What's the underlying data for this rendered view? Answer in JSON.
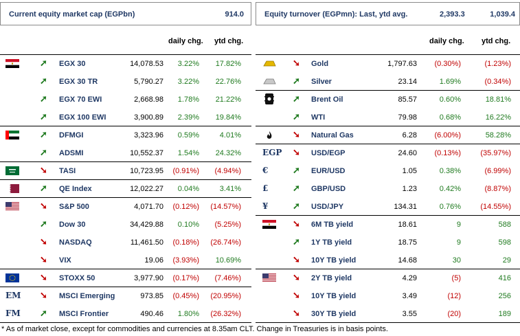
{
  "left_header": {
    "title": "Current equity market cap (EGPbn)",
    "value": "914.0"
  },
  "right_header": {
    "title": "Equity turnover (EGPmn): Last, ytd avg.",
    "last": "2,393.3",
    "ytd": "1,039.4"
  },
  "columns": {
    "daily": "daily chg.",
    "ytd": "ytd chg."
  },
  "left_rows": [
    {
      "icon": "egypt-flag-icon",
      "dir": "up",
      "name": "EGX 30",
      "value": "14,078.53",
      "daily": "3.22%",
      "ytd": "17.82%",
      "d_neg": false,
      "y_neg": false
    },
    {
      "icon": "",
      "dir": "up",
      "name": "EGX 30 TR",
      "value": "5,790.27",
      "daily": "3.22%",
      "ytd": "22.76%",
      "d_neg": false,
      "y_neg": false
    },
    {
      "icon": "",
      "dir": "up",
      "name": "EGX 70 EWI",
      "value": "2,668.98",
      "daily": "1.78%",
      "ytd": "21.22%",
      "d_neg": false,
      "y_neg": false
    },
    {
      "icon": "",
      "dir": "up",
      "name": "EGX 100 EWI",
      "value": "3,900.89",
      "daily": "2.39%",
      "ytd": "19.84%",
      "d_neg": false,
      "y_neg": false
    },
    {
      "icon": "uae-flag-icon",
      "dir": "up",
      "name": "DFMGI",
      "value": "3,323.96",
      "daily": "0.59%",
      "ytd": "4.01%",
      "d_neg": false,
      "y_neg": false
    },
    {
      "icon": "",
      "dir": "up",
      "name": "ADSMI",
      "value": "10,552.37",
      "daily": "1.54%",
      "ytd": "24.32%",
      "d_neg": false,
      "y_neg": false
    },
    {
      "icon": "saudi-flag-icon",
      "dir": "down",
      "name": "TASI",
      "value": "10,723.95",
      "daily": "(0.91%)",
      "ytd": "(4.94%)",
      "d_neg": true,
      "y_neg": true
    },
    {
      "icon": "qatar-flag-icon",
      "dir": "up",
      "name": "QE Index",
      "value": "12,022.27",
      "daily": "0.04%",
      "ytd": "3.41%",
      "d_neg": false,
      "y_neg": false
    },
    {
      "icon": "us-flag-icon",
      "dir": "down",
      "name": "S&P 500",
      "value": "4,071.70",
      "daily": "(0.12%)",
      "ytd": "(14.57%)",
      "d_neg": true,
      "y_neg": true
    },
    {
      "icon": "",
      "dir": "up",
      "name": "Dow 30",
      "value": "34,429.88",
      "daily": "0.10%",
      "ytd": "(5.25%)",
      "d_neg": false,
      "y_neg": true
    },
    {
      "icon": "",
      "dir": "down",
      "name": "NASDAQ",
      "value": "11,461.50",
      "daily": "(0.18%)",
      "ytd": "(26.74%)",
      "d_neg": true,
      "y_neg": true
    },
    {
      "icon": "",
      "dir": "down",
      "name": "VIX",
      "value": "19.06",
      "daily": "(3.93%)",
      "ytd": "10.69%",
      "d_neg": true,
      "y_neg": false
    },
    {
      "icon": "eu-flag-icon",
      "dir": "down",
      "name": "STOXX 50",
      "value": "3,977.90",
      "daily": "(0.17%)",
      "ytd": "(7.46%)",
      "d_neg": true,
      "y_neg": true
    },
    {
      "icon": "em-text-icon",
      "icon_text": "EM",
      "dir": "down",
      "name": "MSCI Emerging",
      "value": "973.85",
      "daily": "(0.45%)",
      "ytd": "(20.95%)",
      "d_neg": true,
      "y_neg": true
    },
    {
      "icon": "fm-text-icon",
      "icon_text": "FM",
      "dir": "up",
      "name": "MSCI Frontier",
      "value": "490.46",
      "daily": "1.80%",
      "ytd": "(26.32%)",
      "d_neg": false,
      "y_neg": true
    }
  ],
  "right_rows": [
    {
      "icon": "gold-bar-icon",
      "dir": "down",
      "name": "Gold",
      "value": "1,797.63",
      "daily": "(0.30%)",
      "ytd": "(1.23%)",
      "d_neg": true,
      "y_neg": true
    },
    {
      "icon": "silver-bar-icon",
      "dir": "up",
      "name": "Silver",
      "value": "23.14",
      "daily": "1.69%",
      "ytd": "(0.34%)",
      "d_neg": false,
      "y_neg": true
    },
    {
      "icon": "oil-barrel-icon",
      "dir": "up",
      "name": "Brent Oil",
      "value": "85.57",
      "daily": "0.60%",
      "ytd": "18.81%",
      "d_neg": false,
      "y_neg": false
    },
    {
      "icon": "",
      "dir": "up",
      "name": "WTI",
      "value": "79.98",
      "daily": "0.68%",
      "ytd": "16.22%",
      "d_neg": false,
      "y_neg": false
    },
    {
      "icon": "flame-icon",
      "dir": "down",
      "name": "Natural Gas",
      "value": "6.28",
      "daily": "(6.00%)",
      "ytd": "58.28%",
      "d_neg": true,
      "y_neg": false
    },
    {
      "icon": "egp-text-icon",
      "icon_text": "EGP",
      "dir": "down",
      "name": "USD/EGP",
      "value": "24.60",
      "daily": "(0.13%)",
      "ytd": "(35.97%)",
      "d_neg": true,
      "y_neg": true
    },
    {
      "icon": "euro-icon",
      "icon_text": "€",
      "dir": "up",
      "name": "EUR/USD",
      "value": "1.05",
      "daily": "0.38%",
      "ytd": "(6.99%)",
      "d_neg": false,
      "y_neg": true
    },
    {
      "icon": "pound-icon",
      "icon_text": "£",
      "dir": "up",
      "name": "GBP/USD",
      "value": "1.23",
      "daily": "0.42%",
      "ytd": "(8.87%)",
      "d_neg": false,
      "y_neg": true
    },
    {
      "icon": "yen-icon",
      "icon_text": "¥",
      "dir": "up",
      "name": "USD/JPY",
      "value": "134.31",
      "daily": "0.76%",
      "ytd": "(14.55%)",
      "d_neg": false,
      "y_neg": true
    },
    {
      "icon": "egypt-flag-icon",
      "dir": "down",
      "name": "6M TB yield",
      "value": "18.61",
      "daily": "9",
      "ytd": "588",
      "d_neg": false,
      "y_neg": false
    },
    {
      "icon": "",
      "dir": "up",
      "name": "1Y TB yield",
      "value": "18.75",
      "daily": "9",
      "ytd": "598",
      "d_neg": false,
      "y_neg": false
    },
    {
      "icon": "",
      "dir": "down",
      "name": "10Y TB yield",
      "value": "14.68",
      "daily": "30",
      "ytd": "29",
      "d_neg": false,
      "y_neg": false
    },
    {
      "icon": "us-flag-icon",
      "dir": "down",
      "name": "2Y TB yield",
      "value": "4.29",
      "daily": "(5)",
      "ytd": "416",
      "d_neg": true,
      "y_neg": false
    },
    {
      "icon": "",
      "dir": "down",
      "name": "10Y TB yield",
      "value": "3.49",
      "daily": "(12)",
      "ytd": "256",
      "d_neg": true,
      "y_neg": false
    },
    {
      "icon": "",
      "dir": "down",
      "name": "30Y TB yield",
      "value": "3.55",
      "daily": "(20)",
      "ytd": "189",
      "d_neg": true,
      "y_neg": false
    }
  ],
  "footnote": "* As of market close, except for commodities and currencies at 8.35am CLT. Change in Treasuries is in basis points.",
  "colors": {
    "positive": "#1f7a1f",
    "negative": "#c00000",
    "title": "#1f3864"
  }
}
